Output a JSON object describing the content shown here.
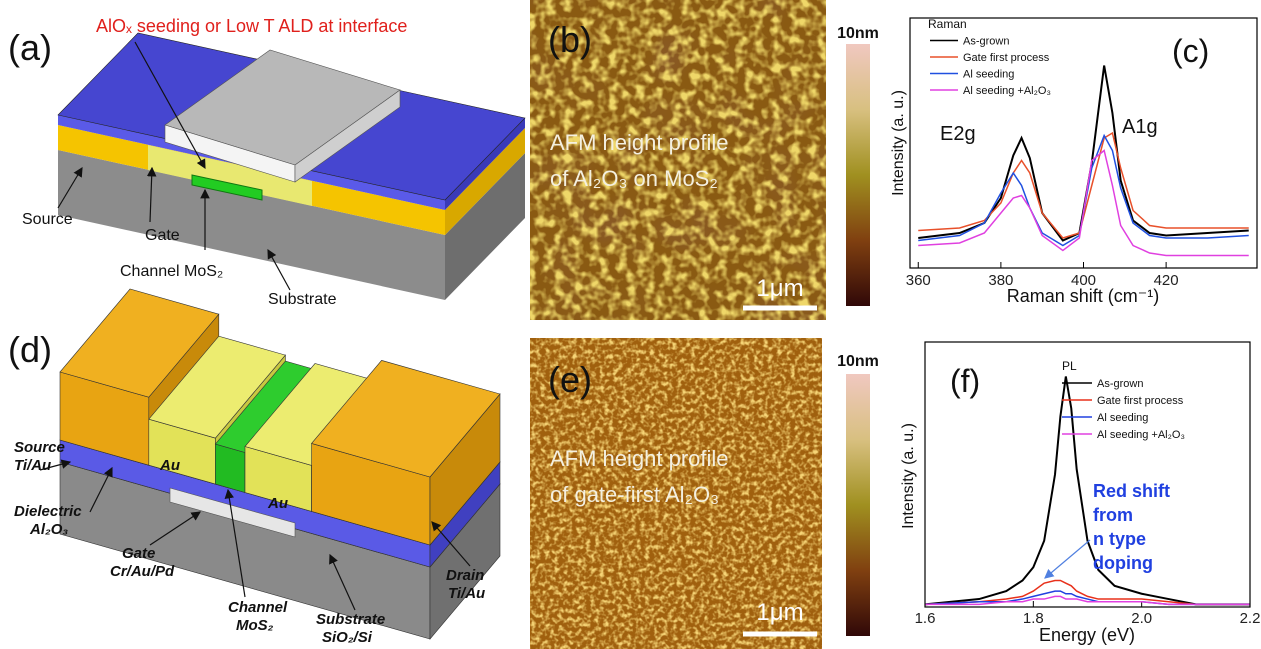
{
  "panels": {
    "a": {
      "label": "(a)",
      "title": "AlOₓ seeding or Low T ALD at interface",
      "source": "Source",
      "gate": "Gate",
      "channel": "Channel MoS₂",
      "substrate": "Substrate"
    },
    "b": {
      "label": "(b)",
      "caption": [
        "AFM height profile",
        "of Al₂O₃ on MoS₂"
      ],
      "scale_bar": "1μm",
      "color_scale_max": "10nm"
    },
    "d": {
      "label": "(d)",
      "source": [
        "Source",
        "Ti/Au"
      ],
      "au_left": "Au",
      "au_right": "Au",
      "dielectric": [
        "Dielectric",
        "Al₂O₃"
      ],
      "gate": [
        "Gate",
        "Cr/Au/Pd"
      ],
      "channel": [
        "Channel",
        "MoS₂"
      ],
      "substrate": [
        "Substrate",
        "SiO₂/Si"
      ],
      "drain": [
        "Drain",
        "Ti/Au"
      ]
    },
    "e": {
      "label": "(e)",
      "caption": [
        "AFM height profile",
        "of gate-first Al₂O₃"
      ],
      "scale_bar": "1μm",
      "color_scale_max": "10nm"
    }
  },
  "chart_data": [
    {
      "type": "line",
      "panel_label": "(c)",
      "legend_title": "Raman",
      "x_label": "Raman shift (cm⁻¹)",
      "y_label": "Intensity (a. u.)",
      "annotations": [
        "E2g",
        "A1g"
      ],
      "x": [
        360,
        370,
        376,
        380,
        383,
        385,
        387,
        390,
        395,
        399,
        402,
        405,
        407,
        409,
        412,
        416,
        420,
        430,
        440
      ],
      "series": [
        {
          "name": "As-grown",
          "color": "#000000",
          "values": [
            0.12,
            0.14,
            0.18,
            0.28,
            0.45,
            0.52,
            0.44,
            0.22,
            0.11,
            0.14,
            0.42,
            0.81,
            0.62,
            0.35,
            0.19,
            0.14,
            0.13,
            0.14,
            0.15
          ]
        },
        {
          "name": "Gate first process",
          "color": "#e8502a",
          "values": [
            0.15,
            0.16,
            0.19,
            0.26,
            0.38,
            0.43,
            0.38,
            0.22,
            0.12,
            0.14,
            0.33,
            0.52,
            0.54,
            0.4,
            0.23,
            0.17,
            0.16,
            0.16,
            0.16
          ]
        },
        {
          "name": "Al seeding",
          "color": "#2050e0",
          "values": [
            0.11,
            0.13,
            0.18,
            0.3,
            0.38,
            0.33,
            0.24,
            0.14,
            0.09,
            0.13,
            0.4,
            0.53,
            0.47,
            0.32,
            0.18,
            0.13,
            0.12,
            0.12,
            0.13
          ]
        },
        {
          "name": "Al seeding +Al₂O₃",
          "color": "#e040e0",
          "values": [
            0.09,
            0.1,
            0.14,
            0.22,
            0.28,
            0.29,
            0.24,
            0.13,
            0.07,
            0.12,
            0.43,
            0.47,
            0.33,
            0.17,
            0.09,
            0.06,
            0.05,
            0.05,
            0.05
          ]
        }
      ],
      "xlim": [
        358,
        442
      ],
      "xticks": [
        360,
        380,
        400,
        420
      ],
      "ylim": [
        0,
        1
      ]
    },
    {
      "type": "line",
      "panel_label": "(f)",
      "legend_title": "PL",
      "x_label": "Energy (eV)",
      "y_label": "Intensity (a. u.)",
      "annotations": [
        "Red shift",
        "from",
        "n type",
        "doping"
      ],
      "x": [
        1.6,
        1.7,
        1.75,
        1.78,
        1.8,
        1.82,
        1.84,
        1.85,
        1.86,
        1.87,
        1.88,
        1.9,
        1.92,
        1.95,
        2.0,
        2.05,
        2.1,
        2.2
      ],
      "series": [
        {
          "name": "As-grown",
          "color": "#000000",
          "values": [
            0.01,
            0.03,
            0.06,
            0.1,
            0.15,
            0.25,
            0.5,
            0.72,
            0.87,
            0.75,
            0.52,
            0.25,
            0.14,
            0.08,
            0.05,
            0.03,
            0.01,
            0.01
          ]
        },
        {
          "name": "Gate first process",
          "color": "#e8301a",
          "values": [
            0.01,
            0.02,
            0.03,
            0.04,
            0.06,
            0.09,
            0.1,
            0.1,
            0.09,
            0.08,
            0.06,
            0.04,
            0.03,
            0.03,
            0.03,
            0.02,
            0.01,
            0.01
          ]
        },
        {
          "name": "Al seeding",
          "color": "#2040e0",
          "values": [
            0.01,
            0.02,
            0.02,
            0.03,
            0.04,
            0.05,
            0.06,
            0.06,
            0.05,
            0.05,
            0.04,
            0.03,
            0.02,
            0.02,
            0.02,
            0.01,
            0.01,
            0.01
          ]
        },
        {
          "name": "Al seeding +Al₂O₃",
          "color": "#e040e0",
          "values": [
            0.01,
            0.01,
            0.02,
            0.02,
            0.03,
            0.03,
            0.04,
            0.04,
            0.03,
            0.03,
            0.03,
            0.02,
            0.02,
            0.02,
            0.02,
            0.01,
            0.01,
            0.01
          ]
        }
      ],
      "xlim": [
        1.6,
        2.2
      ],
      "xticks": [
        1.6,
        1.8,
        {
          "value": 2,
          "label": "2.0"
        },
        2.2
      ],
      "ylim": [
        0,
        1
      ]
    }
  ]
}
